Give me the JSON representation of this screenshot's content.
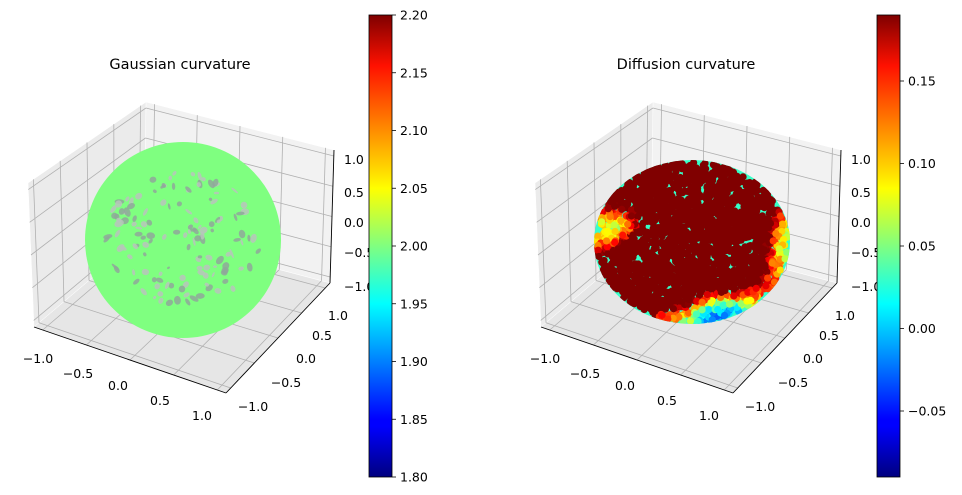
{
  "chart_data": [
    {
      "type": "scatter",
      "title": "Gaussian curvature",
      "projection": "3d",
      "xlim": [
        -1.0,
        1.0
      ],
      "ylim": [
        -1.0,
        1.0
      ],
      "zlim": [
        -1.0,
        1.0
      ],
      "x_ticks": [
        "−1.0",
        "−0.5",
        "0.0",
        "0.5",
        "1.0"
      ],
      "y_ticks": [
        "−1.0",
        "−0.5",
        "0.0",
        "0.5",
        "1.0"
      ],
      "z_ticks": [
        "−1.0",
        "−0.5",
        "0.0",
        "0.5",
        "1.0"
      ],
      "grid": true,
      "colormap": "jet",
      "color_range": [
        1.8,
        2.2
      ],
      "colorbar_ticks": [
        "1.80",
        "1.85",
        "1.90",
        "1.95",
        "2.00",
        "2.05",
        "2.10",
        "2.15",
        "2.20"
      ],
      "point_color_value": 2.0,
      "marker_color": "#80ff80"
    },
    {
      "type": "scatter",
      "title": "Diffusion curvature",
      "projection": "3d",
      "xlim": [
        -1.0,
        1.0
      ],
      "ylim": [
        -1.0,
        1.0
      ],
      "zlim": [
        -1.0,
        1.0
      ],
      "x_ticks": [
        "−1.0",
        "−0.5",
        "0.0",
        "0.5",
        "1.0"
      ],
      "y_ticks": [
        "−1.0",
        "−0.5",
        "0.0",
        "0.5",
        "1.0"
      ],
      "z_ticks": [
        "−1.0",
        "−0.5",
        "0.0",
        "0.5",
        "1.0"
      ],
      "grid": true,
      "colormap": "jet",
      "color_range": [
        -0.09,
        0.19
      ],
      "colorbar_ticks": [
        "−0.05",
        "0.00",
        "0.05",
        "0.10",
        "0.15"
      ],
      "colorbar_tick_values": [
        -0.05,
        0.0,
        0.05,
        0.1,
        0.15
      ]
    }
  ]
}
